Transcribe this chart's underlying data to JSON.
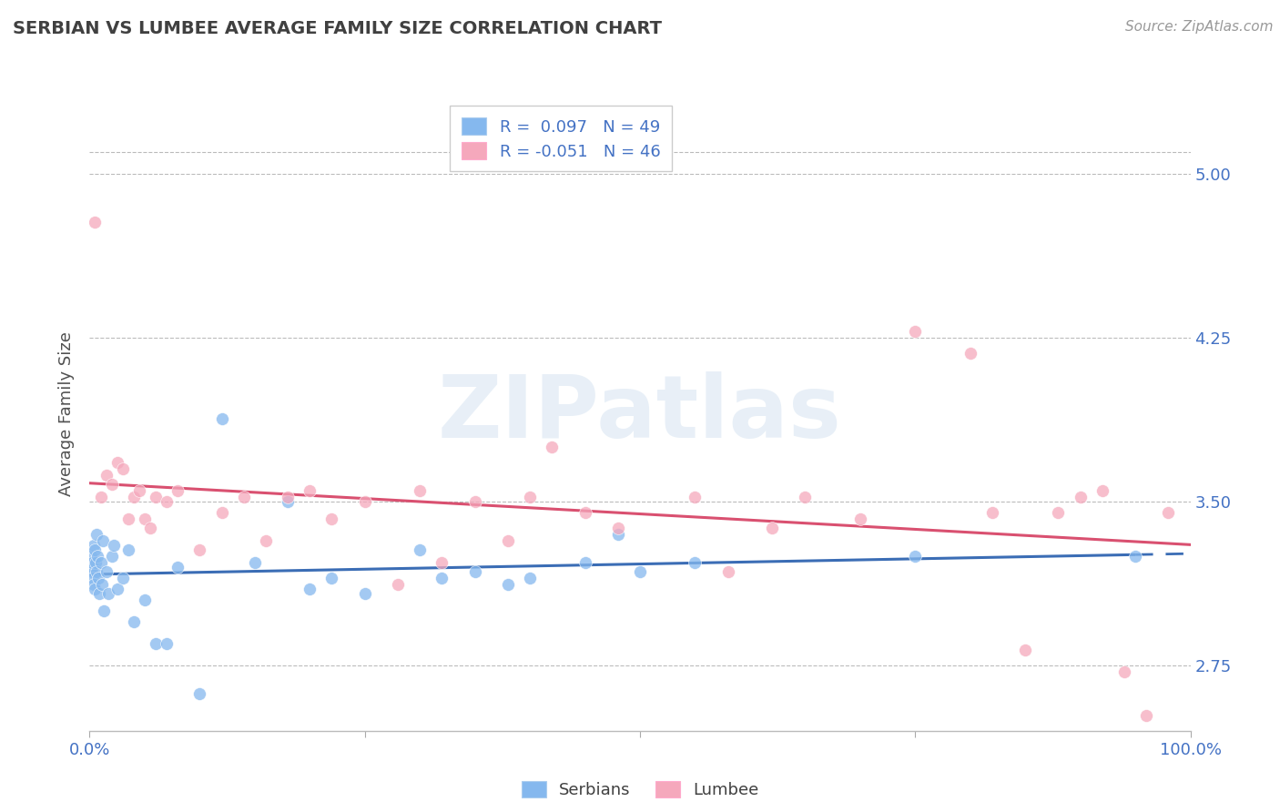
{
  "title": "SERBIAN VS LUMBEE AVERAGE FAMILY SIZE CORRELATION CHART",
  "source": "Source: ZipAtlas.com",
  "ylabel": "Average Family Size",
  "xlim": [
    0.0,
    100.0
  ],
  "ylim": [
    2.45,
    5.35
  ],
  "yticks": [
    2.75,
    3.5,
    4.25,
    5.0
  ],
  "color_serbian": "#85B8EE",
  "color_lumbee": "#F5A8BC",
  "color_trend_serbian": "#3B6DB5",
  "color_trend_lumbee": "#D95070",
  "color_axis": "#4472C4",
  "color_title": "#404040",
  "color_grid": "#BBBBBB",
  "legend_r1_label": "R =  0.097   N = 49",
  "legend_r2_label": "R = -0.051   N = 46",
  "legend_label1": "Serbians",
  "legend_label2": "Lumbee",
  "watermark_text": "ZIPatlas",
  "serbian_x": [
    0.1,
    0.15,
    0.2,
    0.25,
    0.3,
    0.35,
    0.4,
    0.45,
    0.5,
    0.55,
    0.6,
    0.65,
    0.7,
    0.8,
    0.9,
    1.0,
    1.1,
    1.2,
    1.3,
    1.5,
    1.7,
    2.0,
    2.2,
    2.5,
    3.0,
    3.5,
    4.0,
    5.0,
    6.0,
    7.0,
    8.0,
    10.0,
    12.0,
    15.0,
    18.0,
    20.0,
    22.0,
    25.0,
    30.0,
    32.0,
    35.0,
    38.0,
    40.0,
    45.0,
    48.0,
    50.0,
    55.0,
    75.0,
    95.0
  ],
  "serbian_y": [
    3.2,
    3.25,
    3.18,
    3.22,
    3.15,
    3.3,
    3.12,
    3.28,
    3.1,
    3.22,
    3.35,
    3.18,
    3.25,
    3.15,
    3.08,
    3.22,
    3.12,
    3.32,
    3.0,
    3.18,
    3.08,
    3.25,
    3.3,
    3.1,
    3.15,
    3.28,
    2.95,
    3.05,
    2.85,
    2.85,
    3.2,
    2.62,
    3.88,
    3.22,
    3.5,
    3.1,
    3.15,
    3.08,
    3.28,
    3.15,
    3.18,
    3.12,
    3.15,
    3.22,
    3.35,
    3.18,
    3.22,
    3.25,
    3.25
  ],
  "lumbee_x": [
    0.5,
    1.0,
    1.5,
    2.0,
    2.5,
    3.0,
    3.5,
    4.0,
    4.5,
    5.0,
    5.5,
    6.0,
    7.0,
    8.0,
    10.0,
    12.0,
    14.0,
    16.0,
    18.0,
    20.0,
    22.0,
    25.0,
    28.0,
    30.0,
    32.0,
    35.0,
    38.0,
    40.0,
    42.0,
    45.0,
    48.0,
    55.0,
    58.0,
    62.0,
    65.0,
    70.0,
    75.0,
    80.0,
    82.0,
    85.0,
    88.0,
    90.0,
    92.0,
    94.0,
    96.0,
    98.0
  ],
  "lumbee_y": [
    4.78,
    3.52,
    3.62,
    3.58,
    3.68,
    3.65,
    3.42,
    3.52,
    3.55,
    3.42,
    3.38,
    3.52,
    3.5,
    3.55,
    3.28,
    3.45,
    3.52,
    3.32,
    3.52,
    3.55,
    3.42,
    3.5,
    3.12,
    3.55,
    3.22,
    3.5,
    3.32,
    3.52,
    3.75,
    3.45,
    3.38,
    3.52,
    3.18,
    3.38,
    3.52,
    3.42,
    4.28,
    4.18,
    3.45,
    2.82,
    3.45,
    3.52,
    3.55,
    2.72,
    2.52,
    3.45
  ]
}
